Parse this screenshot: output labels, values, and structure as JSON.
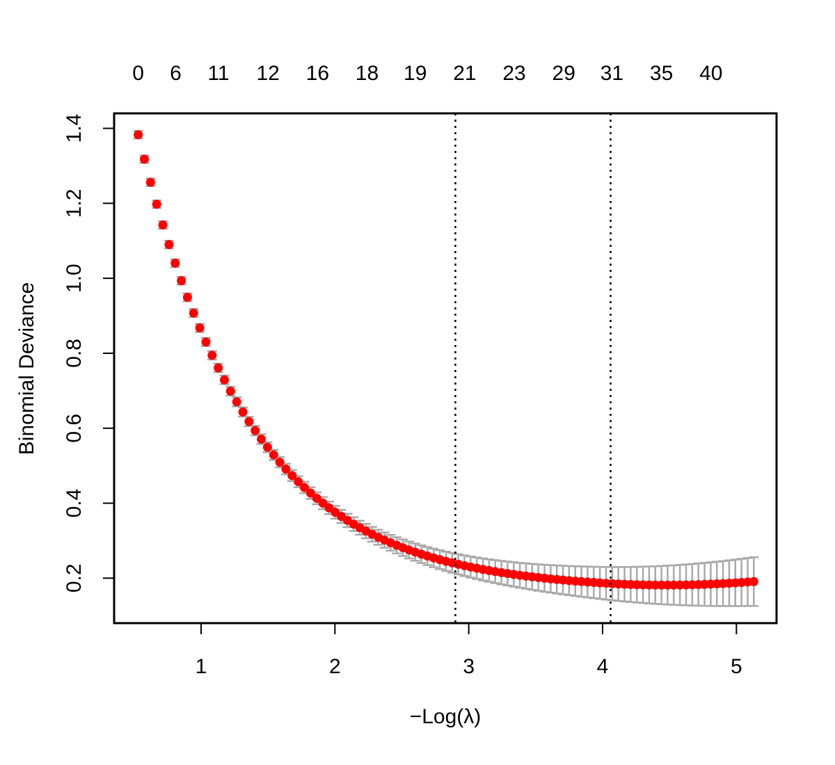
{
  "chart_data": {
    "type": "scatter",
    "title": "",
    "xlabel": "−Log(λ)",
    "ylabel": "Binomial Deviance",
    "xlim": [
      0.35,
      5.3
    ],
    "ylim": [
      0.08,
      1.44
    ],
    "x_ticks": [
      1,
      2,
      3,
      4,
      5
    ],
    "y_ticks": [
      0.2,
      0.4,
      0.6,
      0.8,
      1.0,
      1.2,
      1.4
    ],
    "y_tick_labels": [
      "0.2",
      "0.4",
      "0.6",
      "0.8",
      "1.0",
      "1.2",
      "1.4"
    ],
    "top_axis": {
      "x": [
        0.53,
        0.81,
        1.13,
        1.5,
        1.87,
        2.24,
        2.6,
        2.97,
        3.34,
        3.71,
        4.07,
        4.44,
        4.81
      ],
      "labels": [
        "0",
        "6",
        "11",
        "12",
        "16",
        "18",
        "19",
        "21",
        "23",
        "29",
        "31",
        "35",
        "40"
      ]
    },
    "vlines": [
      2.9,
      4.06
    ],
    "grid": false,
    "legend": "none",
    "point_color": "#ff0000",
    "errorbar_color": "#a9a9a9",
    "series": [
      {
        "x_start": 0.53,
        "x_end": 5.13,
        "n_points": 101,
        "y_start": 1.383,
        "y_min": 0.168,
        "x_at_min": 4.05,
        "y_end": 0.186,
        "se_start": 0.01,
        "se_end": 0.065
      }
    ]
  }
}
